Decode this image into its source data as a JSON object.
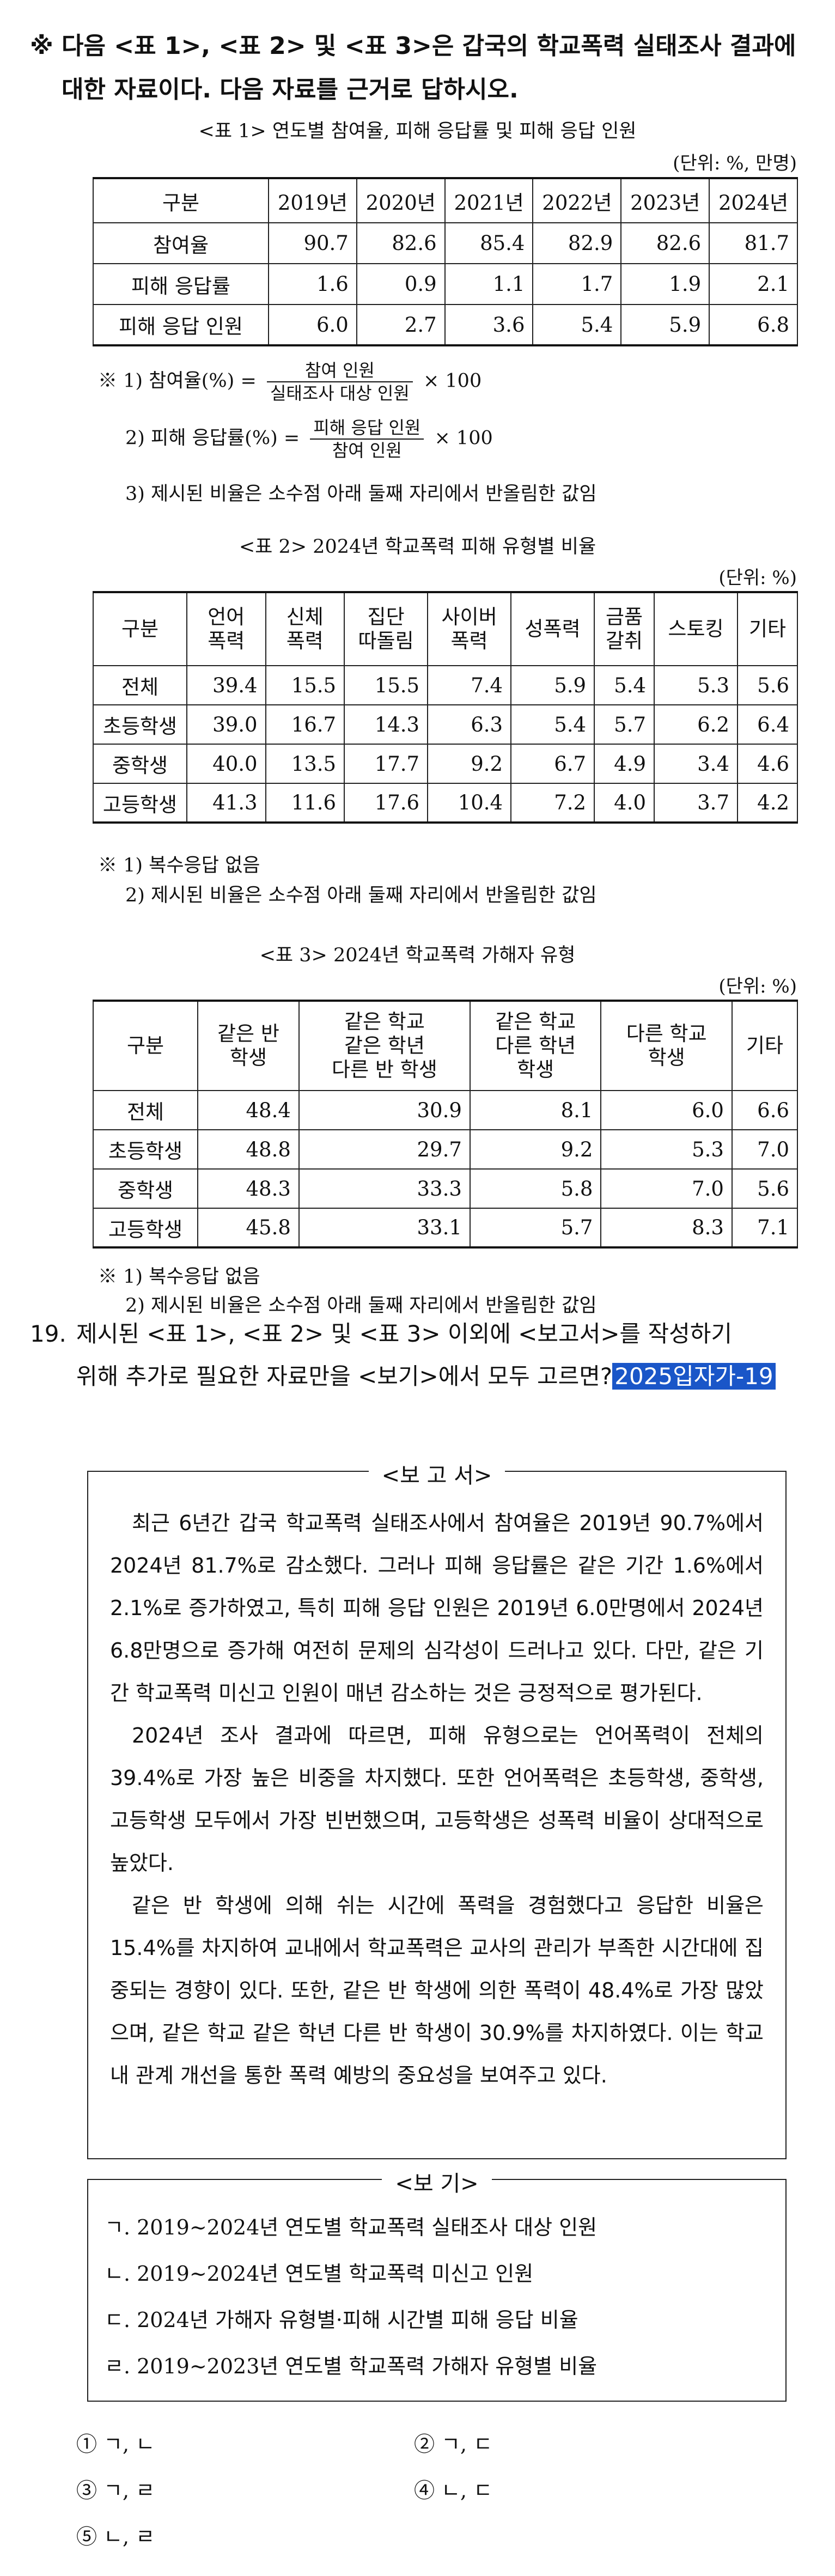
{
  "intro": {
    "mark": "※",
    "line1": "다음 <표 1>, <표 2> 및 <표 3>은 갑국의 학교폭력 실태조사 결과에",
    "line2": "대한 자료이다. 다음 자료를 근거로 답하시오."
  },
  "table1": {
    "caption": "<표 1> 연도별 참여율, 피해 응답률 및 피해 응답 인원",
    "unit": "(단위: %, 만명)",
    "headers": [
      "구분",
      "2019년",
      "2020년",
      "2021년",
      "2022년",
      "2023년",
      "2024년"
    ],
    "rows": [
      {
        "label": "참여율",
        "values": [
          "90.7",
          "82.6",
          "85.4",
          "82.9",
          "82.6",
          "81.7"
        ]
      },
      {
        "label": "피해 응답률",
        "values": [
          "1.6",
          "0.9",
          "1.1",
          "1.7",
          "1.9",
          "2.1"
        ]
      },
      {
        "label": "피해 응답 인원",
        "values": [
          "6.0",
          "2.7",
          "3.6",
          "5.4",
          "5.9",
          "6.8"
        ]
      }
    ],
    "notes": {
      "n1_prefix": "※ 1) 참여율(%) =",
      "n1_num": "참여 인원",
      "n1_den": "실태조사 대상 인원",
      "n1_suffix": "× 100",
      "n2_prefix": "2) 피해 응답률(%) =",
      "n2_num": "피해 응답 인원",
      "n2_den": "참여 인원",
      "n2_suffix": "× 100",
      "n3": "3) 제시된 비율은 소수점 아래 둘째 자리에서 반올림한 값임"
    }
  },
  "table2": {
    "caption": "<표 2> 2024년 학교폭력 피해 유형별 비율",
    "unit": "(단위: %)",
    "headers": [
      "구분",
      "언어\n폭력",
      "신체\n폭력",
      "집단\n따돌림",
      "사이버\n폭력",
      "성폭력",
      "금품\n갈취",
      "스토킹",
      "기타"
    ],
    "rows": [
      {
        "label": "전체",
        "values": [
          "39.4",
          "15.5",
          "15.5",
          "7.4",
          "5.9",
          "5.4",
          "5.3",
          "5.6"
        ]
      },
      {
        "label": "초등학생",
        "values": [
          "39.0",
          "16.7",
          "14.3",
          "6.3",
          "5.4",
          "5.7",
          "6.2",
          "6.4"
        ]
      },
      {
        "label": "중학생",
        "values": [
          "40.0",
          "13.5",
          "17.7",
          "9.2",
          "6.7",
          "4.9",
          "3.4",
          "4.6"
        ]
      },
      {
        "label": "고등학생",
        "values": [
          "41.3",
          "11.6",
          "17.6",
          "10.4",
          "7.2",
          "4.0",
          "3.7",
          "4.2"
        ]
      }
    ],
    "notes": {
      "n1": "※ 1) 복수응답 없음",
      "n2": "2) 제시된 비율은 소수점 아래 둘째 자리에서 반올림한 값임"
    }
  },
  "table3": {
    "caption": "<표 3> 2024년 학교폭력 가해자 유형",
    "unit": "(단위: %)",
    "headers": [
      "구분",
      "같은 반\n학생",
      "같은 학교\n같은 학년\n다른 반 학생",
      "같은 학교\n다른 학년\n학생",
      "다른 학교\n학생",
      "기타"
    ],
    "rows": [
      {
        "label": "전체",
        "values": [
          "48.4",
          "30.9",
          "8.1",
          "6.0",
          "6.6"
        ]
      },
      {
        "label": "초등학생",
        "values": [
          "48.8",
          "29.7",
          "9.2",
          "5.3",
          "7.0"
        ]
      },
      {
        "label": "중학생",
        "values": [
          "48.3",
          "33.3",
          "5.8",
          "7.0",
          "5.6"
        ]
      },
      {
        "label": "고등학생",
        "values": [
          "45.8",
          "33.1",
          "5.7",
          "8.3",
          "7.1"
        ]
      }
    ],
    "notes": {
      "n1": "※ 1) 복수응답 없음",
      "n2": "2) 제시된 비율은 소수점 아래 둘째 자리에서 반올림한 값임"
    }
  },
  "question": {
    "number": "19.",
    "line1": "제시된 <표 1>, <표 2> 및 <표 3> 이외에 <보고서>를 작성하기",
    "line2": "위해 추가로 필요한 자료만을 <보기>에서 모두 고르면?",
    "tag": "2025입자가-19"
  },
  "report": {
    "title": "<보 고 서>",
    "paragraphs": [
      "최근 6년간 갑국 학교폭력 실태조사에서 참여율은 2019년 90.7%에서 2024년 81.7%로 감소했다. 그러나 피해 응답률은 같은 기간 1.6%에서 2.1%로 증가하였고, 특히 피해 응답 인원은 2019년 6.0만명에서 2024년 6.8만명으로 증가해 여전히 문제의 심각성이 드러나고 있다. 다만, 같은 기간 학교폭력 미신고 인원이 매년 감소하는 것은 긍정적으로 평가된다.",
      "2024년 조사 결과에 따르면, 피해 유형으로는 언어폭력이 전체의 39.4%로 가장 높은 비중을 차지했다. 또한 언어폭력은 초등학생, 중학생, 고등학생 모두에서 가장 빈번했으며, 고등학생은 성폭력 비율이 상대적으로 높았다.",
      "같은 반 학생에 의해 쉬는 시간에 폭력을 경험했다고 응답한 비율은 15.4%를 차지하여 교내에서 학교폭력은 교사의 관리가 부족한 시간대에 집중되는 경향이 있다. 또한, 같은 반 학생에 의한 폭력이 48.4%로 가장 많았으며, 같은 학교 같은 학년 다른 반 학생이 30.9%를 차지하였다. 이는 학교 내 관계 개선을 통한 폭력 예방의 중요성을 보여주고 있다."
    ]
  },
  "bogi": {
    "title": "<보 기>",
    "items": [
      "ㄱ. 2019∼2024년 연도별 학교폭력 실태조사 대상 인원",
      "ㄴ. 2019∼2024년 연도별 학교폭력 미신고 인원",
      "ㄷ. 2024년 가해자 유형별·피해 시간별 피해 응답 비율",
      "ㄹ. 2019∼2023년 연도별 학교폭력 가해자 유형별 비율"
    ]
  },
  "choices": [
    "① ㄱ, ㄴ",
    "② ㄱ, ㄷ",
    "③ ㄱ, ㄹ",
    "④ ㄴ, ㄷ",
    "⑤ ㄴ, ㄹ"
  ]
}
